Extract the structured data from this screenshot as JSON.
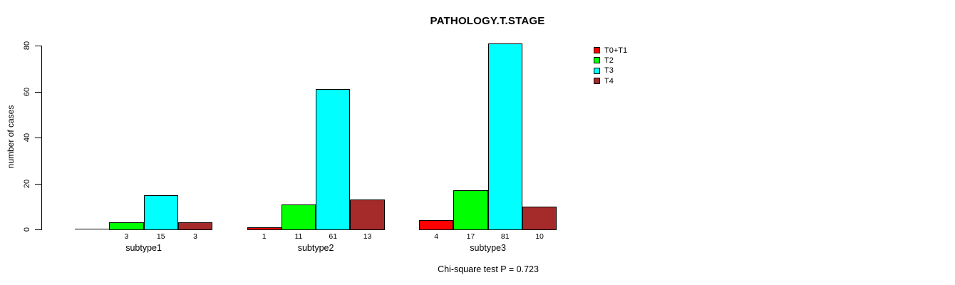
{
  "chart_data": {
    "type": "bar",
    "title": "PATHOLOGY.T.STAGE",
    "ylabel": "number of cases",
    "xlabel": "",
    "categories": [
      "subtype1",
      "subtype2",
      "subtype3"
    ],
    "series": [
      {
        "name": "T0+T1",
        "color": "#ff0000",
        "values": [
          0,
          1,
          4
        ]
      },
      {
        "name": "T2",
        "color": "#00ff00",
        "values": [
          3,
          11,
          17
        ]
      },
      {
        "name": "T3",
        "color": "#00ffff",
        "values": [
          15,
          61,
          81
        ]
      },
      {
        "name": "T4",
        "color": "#a52a2a",
        "values": [
          3,
          13,
          10
        ]
      }
    ],
    "ylim": [
      0,
      80
    ],
    "yticks": [
      0,
      20,
      40,
      60,
      80
    ],
    "grid": false,
    "legend_position": "top-right",
    "bar_value_labels": "numeric value shown below each bar; zero values unlabeled",
    "annotation": "Chi-square test P = 0.723"
  },
  "colors": {
    "background": "#ffffff",
    "axis": "#000000",
    "text": "#000000"
  }
}
